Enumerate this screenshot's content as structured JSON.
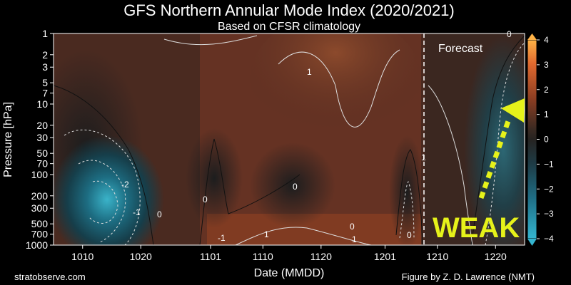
{
  "chart_data": {
    "type": "heatmap",
    "title": "GFS Northern Annular Mode Index (2020/2021)",
    "subtitle": "Based on CFSR climatology",
    "xlabel": "Date (MMDD)",
    "ylabel": "Pressure [hPa]",
    "x_ticks": [
      "1010",
      "1020",
      "1101",
      "1110",
      "1120",
      "1201",
      "1210",
      "1220"
    ],
    "y_ticks": [
      1,
      2,
      3,
      5,
      7,
      10,
      20,
      30,
      50,
      70,
      100,
      200,
      300,
      500,
      700,
      1000
    ],
    "y_scale": "log",
    "y_reversed": true,
    "colorbar": {
      "ticks": [
        4,
        3,
        2,
        1,
        0,
        -1,
        -2,
        -3,
        -4
      ],
      "range": [
        -4,
        4
      ],
      "colors": {
        "positive": "#c4542a",
        "neutral": "#2b2520",
        "negative": "#2a9ab5"
      }
    },
    "contour_labels": [
      "-2",
      "-1",
      "0",
      "0",
      "0",
      "1",
      "1",
      "1",
      "-1",
      "0",
      "1",
      "0",
      "0"
    ],
    "forecast_label": "Forecast",
    "annotation": "WEAK",
    "annotation_color": "#e6f21a",
    "credit_left": "stratobserve.com",
    "credit_right": "Figure by Z. D. Lawrence (NMT)"
  }
}
